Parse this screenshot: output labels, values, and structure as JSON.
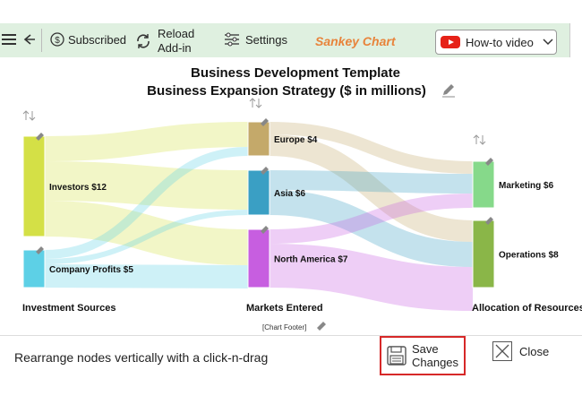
{
  "toolbar": {
    "subscribed_label": "Subscribed",
    "reload_line1": "Reload",
    "reload_line2": "Add-in",
    "settings_label": "Settings",
    "app_title": "Sankey Chart",
    "howto_label": "How-to video"
  },
  "chart": {
    "title_line1": "Business Development Template",
    "title_line2": "Business Expansion Strategy ($ in millions)",
    "footer": "[Chart Footer]",
    "columns": [
      "Investment Sources",
      "Markets Entered",
      "Allocation of Resources"
    ]
  },
  "chart_data": {
    "type": "sankey",
    "nodes": [
      {
        "name": "Investors",
        "value": 12,
        "label": "Investors $12",
        "color": "#d4e046"
      },
      {
        "name": "Company Profits",
        "value": 5,
        "label": "Company Profits $5",
        "color": "#5dd0e6"
      },
      {
        "name": "Europe",
        "value": 4,
        "label": "Europe $4",
        "color": "#c4a96a"
      },
      {
        "name": "Asia",
        "value": 6,
        "label": "Asia $6",
        "color": "#3a9fc4"
      },
      {
        "name": "North America",
        "value": 7,
        "label": "North America $7",
        "color": "#c75ee0"
      },
      {
        "name": "Marketing",
        "value": 6,
        "label": "Marketing $6",
        "color": "#86d98a"
      },
      {
        "name": "Operations",
        "value": 8,
        "label": "Operations $8",
        "color": "#8ab648"
      }
    ],
    "links": [
      {
        "source": "Investors",
        "target": "Europe"
      },
      {
        "source": "Investors",
        "target": "Asia"
      },
      {
        "source": "Investors",
        "target": "North America"
      },
      {
        "source": "Company Profits",
        "target": "Europe"
      },
      {
        "source": "Company Profits",
        "target": "Asia"
      },
      {
        "source": "Company Profits",
        "target": "North America"
      },
      {
        "source": "Europe",
        "target": "Marketing"
      },
      {
        "source": "Europe",
        "target": "Operations"
      },
      {
        "source": "Asia",
        "target": "Marketing"
      },
      {
        "source": "Asia",
        "target": "Operations"
      },
      {
        "source": "North America",
        "target": "Marketing"
      },
      {
        "source": "North America",
        "target": "Operations"
      }
    ]
  },
  "footer": {
    "hint": "Rearrange nodes vertically with a click-n-drag",
    "save_line1": "Save",
    "save_line2": "Changes",
    "close_label": "Close"
  }
}
